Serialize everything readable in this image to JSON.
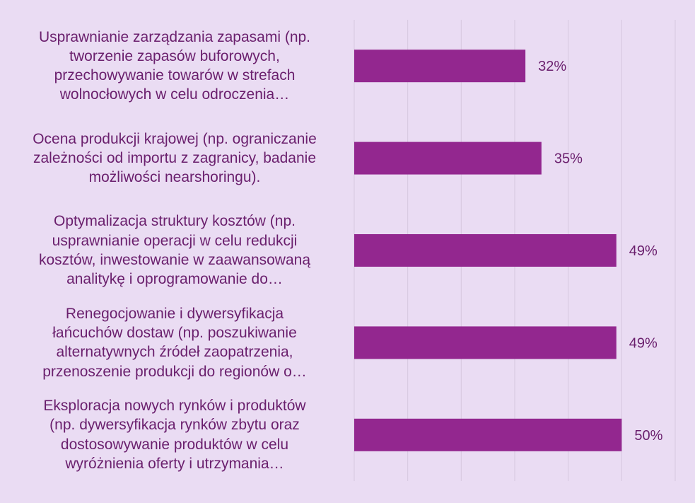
{
  "colors": {
    "background": "#eadcf3",
    "bar": "#93278f",
    "text": "#6a1f6d",
    "grid": "#d6c8df"
  },
  "chart_data": {
    "type": "bar",
    "orientation": "horizontal",
    "categories": [
      "Usprawnianie zarządzania zapasami (np. tworzenie zapasów buforowych, przechowywanie towarów w strefach wolnocłowych w celu odroczenia…",
      "Ocena produkcji krajowej (np. ograniczanie zależności od importu z zagranicy, badanie możliwości nearshoringu).",
      "Optymalizacja struktury kosztów (np. usprawnianie operacji w celu redukcji kosztów, inwestowanie w zaawansowaną analitykę i oprogramowanie do…",
      "Renegocjowanie i dywersyfikacja łańcuchów dostaw (np. poszukiwanie alternatywnych źródeł zaopatrzenia, przenoszenie produkcji do regionów o…",
      "Eksploracja nowych rynków i produktów (np. dywersyfikacja rynków zbytu oraz dostosowywanie produktów w celu wyróżnienia oferty i utrzymania…"
    ],
    "category_lines": [
      [
        "Usprawnianie zarządzania zapasami (np.",
        "tworzenie zapasów buforowych,",
        "przechowywanie towarów w strefach",
        "wolnocłowych w celu odroczenia…"
      ],
      [
        "Ocena produkcji krajowej (np. ograniczanie",
        "zależności od importu z zagranicy, badanie",
        "możliwości nearshoringu)."
      ],
      [
        "Optymalizacja struktury kosztów (np.",
        "usprawnianie operacji w celu redukcji",
        "kosztów, inwestowanie w zaawansowaną",
        "analitykę i oprogramowanie do…"
      ],
      [
        "Renegocjowanie i dywersyfikacja",
        "łańcuchów dostaw (np. poszukiwanie",
        "alternatywnych źródeł zaopatrzenia,",
        "przenoszenie produkcji do regionów o…"
      ],
      [
        "Eksploracja nowych rynków i produktów",
        "(np. dywersyfikacja rynków zbytu oraz",
        "dostosowywanie produktów w celu",
        "wyróżnienia oferty i utrzymania…"
      ]
    ],
    "values": [
      32,
      35,
      49,
      49,
      50
    ],
    "data_labels": [
      "32%",
      "35%",
      "49%",
      "49%",
      "50%"
    ],
    "xlim": [
      0,
      60
    ],
    "grid": true,
    "legend": "none"
  }
}
